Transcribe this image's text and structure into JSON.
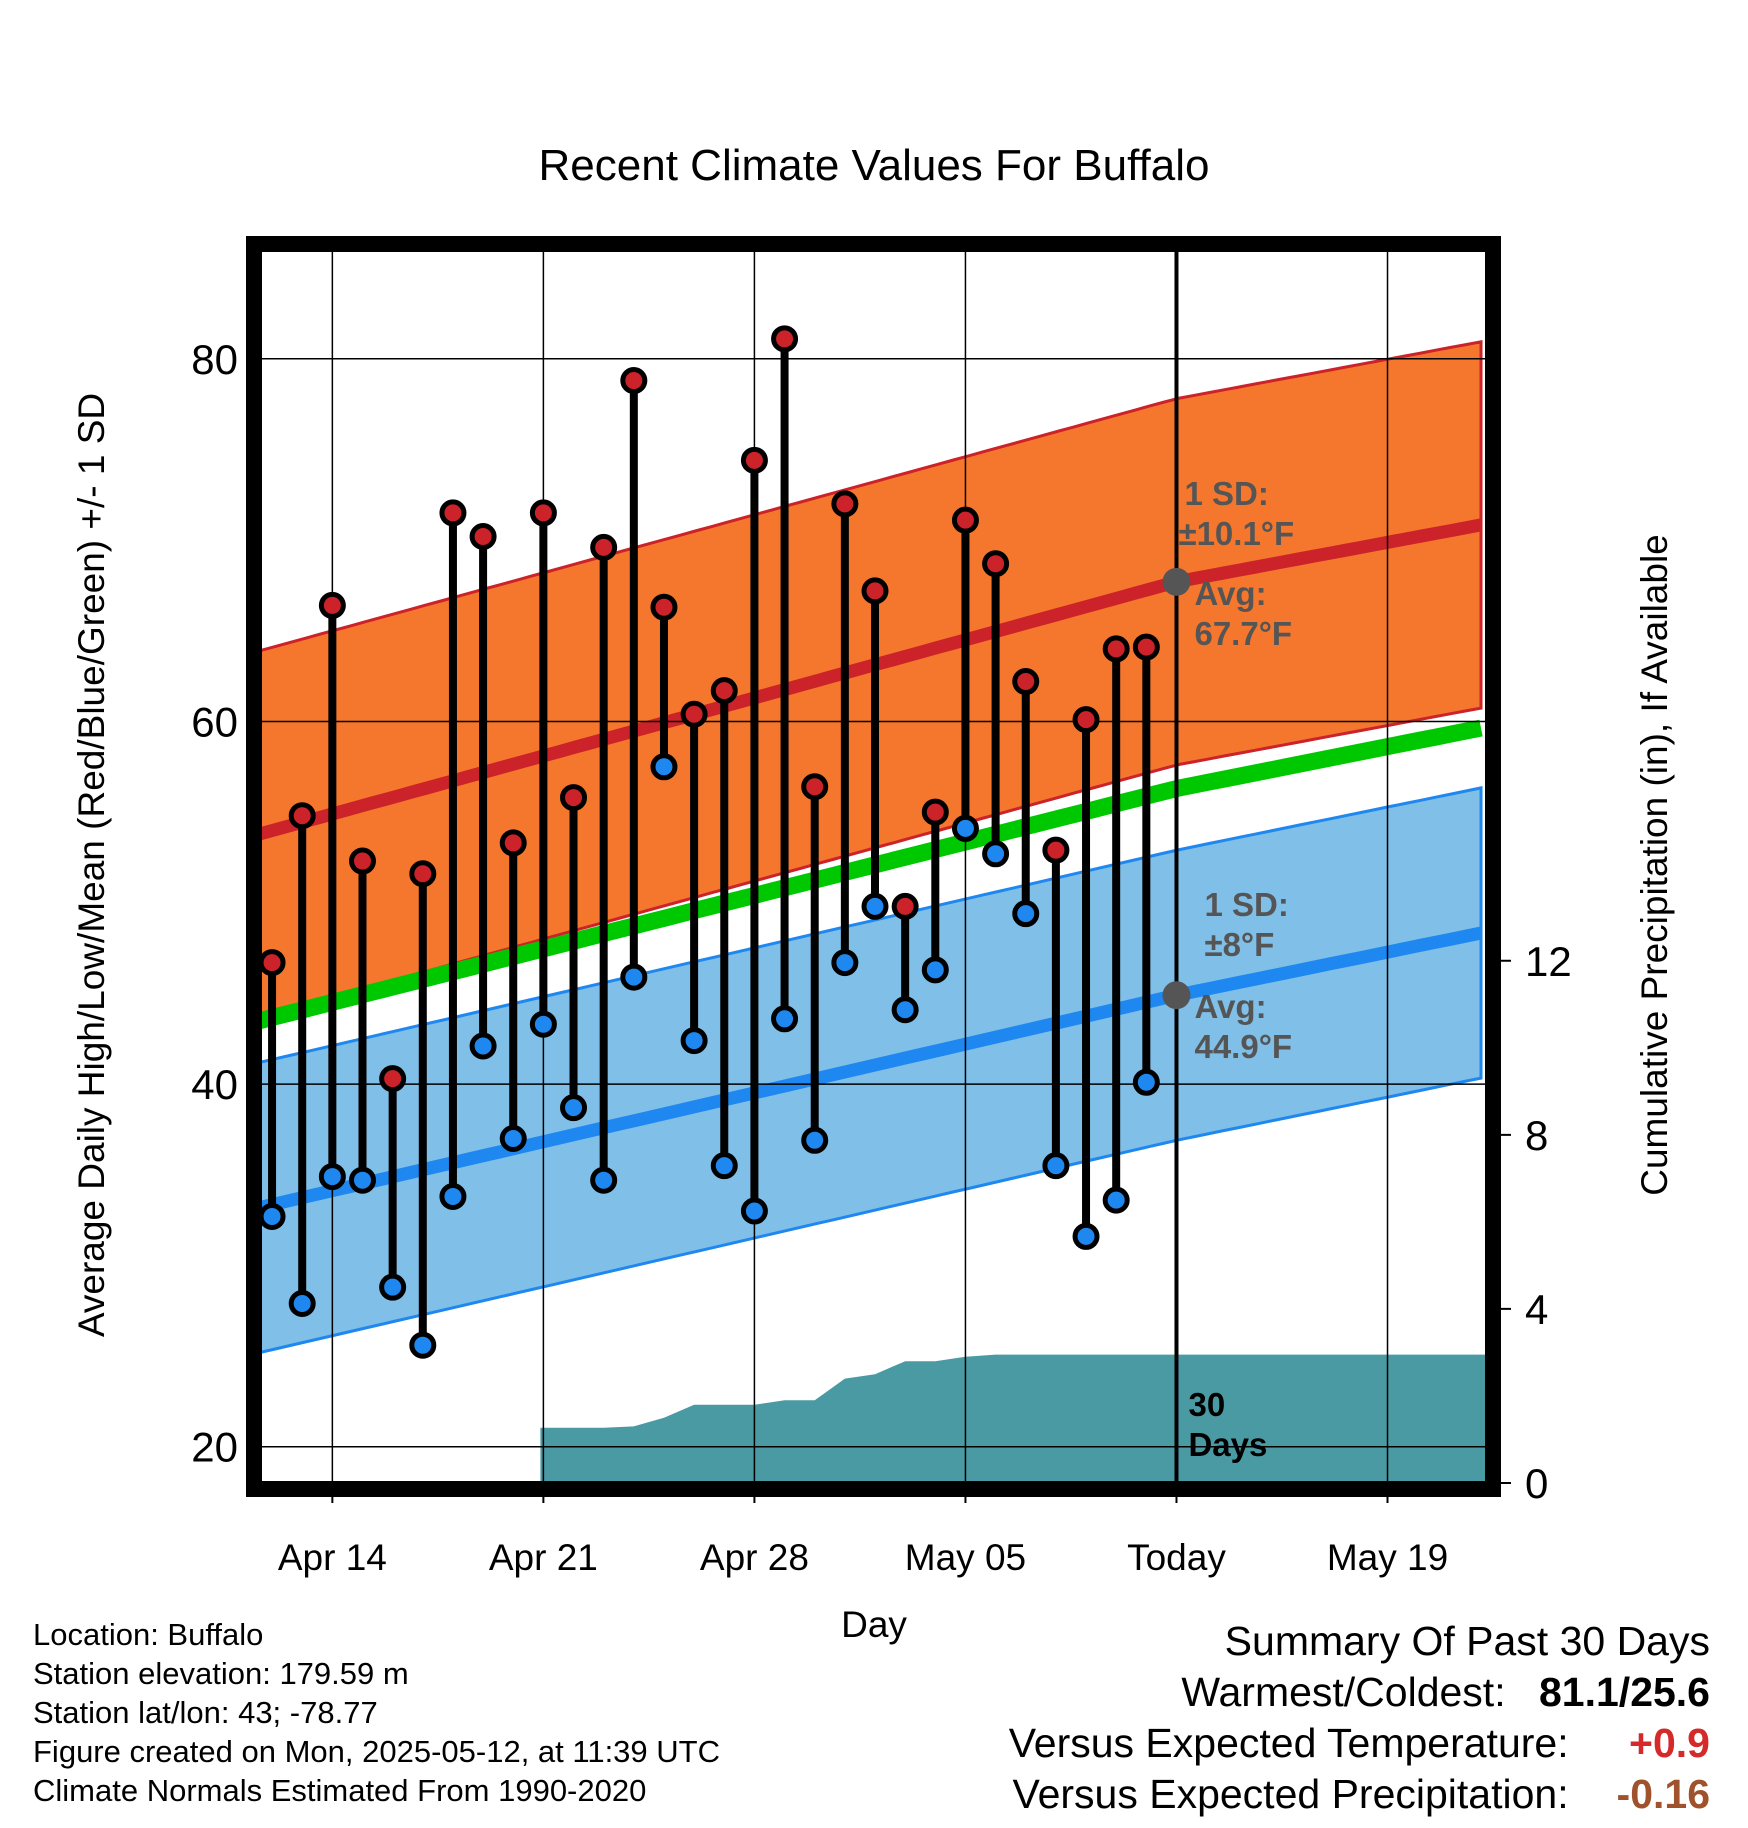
{
  "title": "Recent Climate Values For Buffalo",
  "ylabel_left": "Average Daily High/Low/Mean (Red/Blue/Green) +/- 1 SD",
  "ylabel_right": "Cumulative Precipitation (in), If Available",
  "xlabel": "Day",
  "colors": {
    "high_band": "#f5772e",
    "high_line": "#cc2229",
    "low_band": "#80bfe8",
    "low_line": "#1e88f0",
    "mean_line": "#00c800",
    "precip": "#4a9aa3",
    "high_dot": "#cc2229",
    "low_dot": "#1e88f0",
    "annotation": "#555555",
    "positive": "#d42a2a",
    "negative": "#a0522d"
  },
  "annotations": {
    "high_sd": "1 SD:",
    "high_sd_value": "±10.1°F",
    "high_avg": "Avg:",
    "high_avg_value": "67.7°F",
    "low_sd": "1 SD:",
    "low_sd_value": "±8°F",
    "low_avg": "Avg:",
    "low_avg_value": "44.9°F",
    "days_count": "30",
    "days_label": "Days"
  },
  "info": {
    "location": "Location: Buffalo",
    "elevation": "Station elevation: 179.59 m",
    "latlon": "Station lat/lon: 43; -78.77",
    "created": "Figure created on Mon, 2025-05-12, at 11:39 UTC",
    "normals": "Climate Normals Estimated From 1990-2020"
  },
  "summary": {
    "heading": "Summary Of Past 30 Days",
    "warm_cold_label": "Warmest/Coldest:",
    "warm_cold_value": "81.1/25.6",
    "temp_label": "Versus Expected Temperature:",
    "temp_value": "+0.9",
    "precip_label": "Versus Expected Precipitation:",
    "precip_value": "-0.16"
  },
  "chart_data": {
    "type": "line",
    "x_units": "days relative to Apr 14",
    "xlim": [
      -2.4,
      38.3
    ],
    "ylim": [
      18,
      86
    ],
    "y_ticks": [
      20,
      40,
      60,
      80
    ],
    "y_minor_ticks": [
      30,
      50,
      70
    ],
    "y2_label": "Cumulative Precipitation (in), If Available",
    "y2_ticks": [
      0,
      4,
      8,
      12
    ],
    "x_ticks": [
      {
        "x": 0,
        "label": "Apr 14"
      },
      {
        "x": 7,
        "label": "Apr 21"
      },
      {
        "x": 14,
        "label": "Apr 28"
      },
      {
        "x": 21,
        "label": "May 05"
      },
      {
        "x": 28,
        "label": "Today"
      },
      {
        "x": 35,
        "label": "May 19"
      }
    ],
    "today_x": 28,
    "grid": true,
    "normals": {
      "x": [
        -2.4,
        28,
        38.3
      ],
      "high_mean": [
        53.8,
        67.7,
        70.9
      ],
      "high_sd": 10.1,
      "low_mean": [
        33.2,
        44.9,
        48.4
      ],
      "low_sd": 8.0,
      "mean": [
        43.5,
        56.3,
        59.7
      ]
    },
    "daily": {
      "x": [
        -2,
        -1,
        0,
        1,
        2,
        3,
        4,
        5,
        6,
        7,
        8,
        9,
        10,
        11,
        12,
        13,
        14,
        15,
        16,
        17,
        18,
        19,
        20,
        21,
        22,
        23,
        24,
        25,
        26,
        27
      ],
      "high": [
        46.7,
        54.8,
        66.4,
        52.3,
        40.3,
        51.6,
        71.5,
        70.2,
        53.3,
        71.5,
        55.8,
        69.6,
        78.8,
        66.3,
        60.4,
        61.7,
        74.4,
        81.1,
        56.4,
        72.0,
        67.2,
        49.8,
        55.0,
        71.1,
        68.7,
        62.2,
        52.9,
        60.1,
        64.0,
        64.1
      ],
      "low": [
        32.7,
        27.9,
        34.9,
        34.7,
        28.8,
        25.6,
        33.8,
        42.1,
        37.0,
        43.3,
        38.7,
        34.7,
        45.9,
        57.5,
        42.4,
        35.5,
        33.0,
        43.6,
        36.9,
        46.7,
        49.8,
        44.1,
        46.3,
        54.1,
        52.7,
        49.4,
        35.5,
        31.6,
        33.6,
        40.1
      ]
    },
    "precip_cumulative": {
      "x": [
        6.9,
        8,
        9,
        10,
        11,
        12,
        13,
        14,
        15,
        16,
        17,
        18,
        19,
        20,
        21,
        22,
        23,
        24,
        25,
        26,
        27,
        28,
        38.3
      ],
      "y": [
        1.27,
        1.27,
        1.27,
        1.3,
        1.5,
        1.8,
        1.8,
        1.8,
        1.9,
        1.9,
        2.4,
        2.5,
        2.8,
        2.8,
        2.9,
        2.95,
        2.95,
        2.95,
        2.95,
        2.95,
        2.95,
        2.95,
        2.95
      ]
    }
  }
}
